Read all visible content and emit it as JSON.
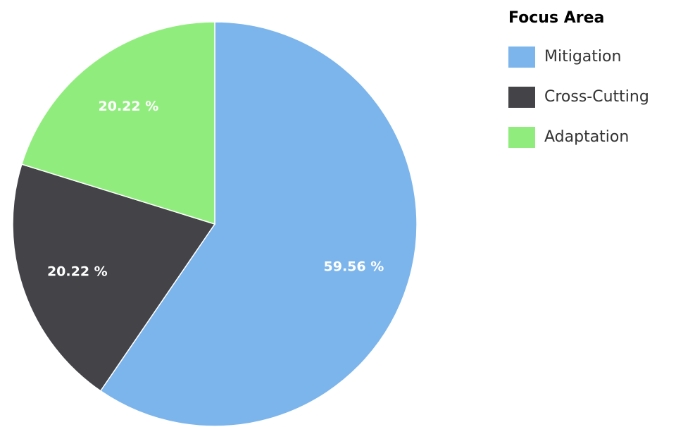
{
  "chart_data": {
    "type": "pie",
    "legend_title": "Focus Area",
    "categories": [
      "Mitigation",
      "Cross-Cutting",
      "Adaptation"
    ],
    "values": [
      59.56,
      20.22,
      20.22
    ],
    "value_labels": [
      "59.56 %",
      "20.22 %",
      "20.22 %"
    ],
    "colors": [
      "#7cb5ec",
      "#434348",
      "#90ed7d"
    ],
    "legend": "right"
  }
}
